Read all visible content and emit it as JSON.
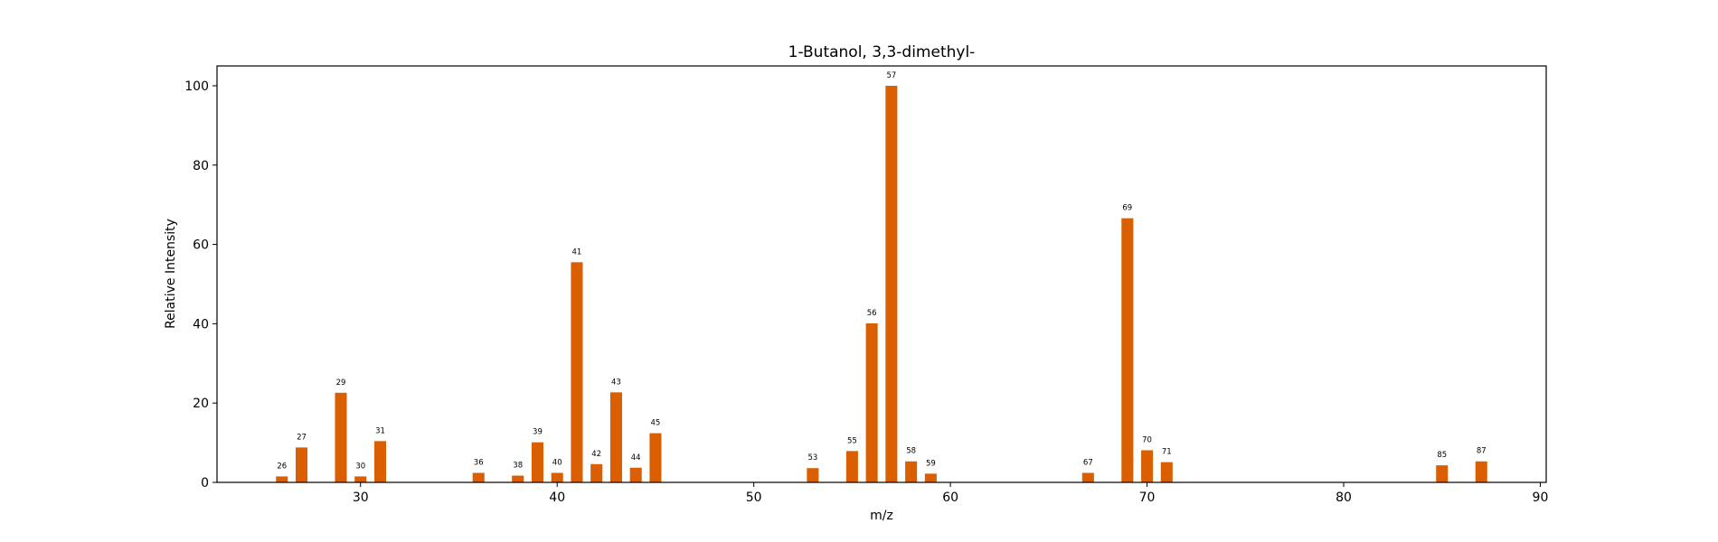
{
  "chart_data": {
    "type": "bar",
    "title": "1-Butanol, 3,3-dimethyl-",
    "xlabel": "m/z",
    "ylabel": "Relative Intensity",
    "xlim": [
      22.7,
      90.3
    ],
    "ylim": [
      0,
      105
    ],
    "xticks": [
      30,
      40,
      50,
      60,
      70,
      80,
      90
    ],
    "yticks": [
      0,
      20,
      40,
      60,
      80,
      100
    ],
    "bar_color": "#d95f02",
    "grid": false,
    "x": [
      26,
      27,
      29,
      30,
      31,
      36,
      38,
      39,
      40,
      41,
      42,
      43,
      44,
      45,
      53,
      55,
      56,
      57,
      58,
      59,
      67,
      69,
      70,
      71,
      85,
      87
    ],
    "values": [
      1.5,
      8.8,
      22.6,
      1.5,
      10.4,
      2.4,
      1.7,
      10.1,
      2.4,
      55.5,
      4.6,
      22.7,
      3.7,
      12.4,
      3.6,
      7.9,
      40.1,
      100,
      5.3,
      2.2,
      2.4,
      66.6,
      8.1,
      5.1,
      4.3,
      5.3
    ],
    "labels": [
      "26",
      "27",
      "29",
      "30",
      "31",
      "36",
      "38",
      "39",
      "40",
      "41",
      "42",
      "43",
      "44",
      "45",
      "53",
      "55",
      "56",
      "57",
      "58",
      "59",
      "67",
      "69",
      "70",
      "71",
      "85",
      "87"
    ]
  }
}
